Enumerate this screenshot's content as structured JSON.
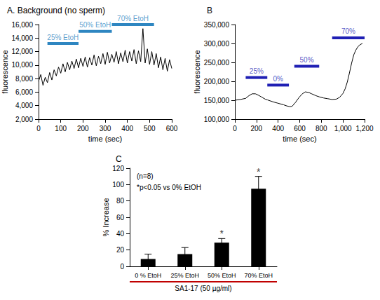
{
  "chart_data": [
    {
      "type": "line",
      "title": "A. Background (no sperm)",
      "x_label": "time (sec)",
      "y_label": "fluorescence",
      "x": [
        0,
        10,
        20,
        30,
        40,
        50,
        60,
        70,
        80,
        90,
        100,
        110,
        120,
        130,
        140,
        150,
        160,
        170,
        180,
        190,
        200,
        210,
        220,
        230,
        240,
        250,
        260,
        270,
        280,
        290,
        300,
        310,
        320,
        330,
        340,
        350,
        360,
        370,
        380,
        390,
        400,
        410,
        420,
        430,
        440,
        450,
        460,
        470,
        480,
        490,
        500,
        510,
        520,
        530,
        540,
        550,
        560,
        570,
        580,
        590,
        600
      ],
      "values": [
        7600,
        8600,
        7000,
        8200,
        7400,
        8900,
        7800,
        9300,
        8400,
        9700,
        8800,
        10200,
        9000,
        10400,
        9300,
        10600,
        9500,
        10900,
        9600,
        11000,
        9800,
        11200,
        9700,
        11100,
        10000,
        11500,
        9900,
        11300,
        10200,
        11700,
        10100,
        11900,
        10300,
        11600,
        10400,
        12000,
        10200,
        11800,
        10500,
        12200,
        10300,
        12000,
        10600,
        12300,
        10200,
        12100,
        10500,
        15400,
        10300,
        12400,
        10100,
        12000,
        10000,
        11700,
        9600,
        11200,
        9300,
        11000,
        9100,
        10800,
        9500
      ],
      "color": "#000000",
      "xlim": [
        0,
        600
      ],
      "xticks": [
        0,
        100,
        200,
        300,
        400,
        500,
        600
      ],
      "ylim": [
        2000,
        16000
      ],
      "yticks": [
        2000,
        4000,
        6000,
        8000,
        10000,
        12000,
        14000,
        16000
      ],
      "grid": false,
      "annotations": [
        {
          "text": "25% EtoH",
          "x0": 40,
          "x1": 180,
          "y": 13200,
          "color": "#2e86c1"
        },
        {
          "text": "50% EtoH",
          "x0": 180,
          "x1": 330,
          "y": 15000,
          "color": "#2e86c1"
        },
        {
          "text": "70% EtoH",
          "x0": 330,
          "x1": 520,
          "y": 16000,
          "color": "#2e86c1"
        }
      ]
    },
    {
      "type": "line",
      "title": "B",
      "x_label": "time (sec)",
      "y_label": "fluorescence",
      "x": [
        0,
        50,
        100,
        130,
        160,
        190,
        220,
        250,
        280,
        300,
        350,
        400,
        450,
        480,
        510,
        530,
        560,
        590,
        620,
        650,
        680,
        710,
        750,
        780,
        820,
        860,
        900,
        940,
        970,
        1000,
        1020,
        1040,
        1060,
        1080,
        1100,
        1120,
        1140,
        1160,
        1180
      ],
      "values": [
        150000,
        152000,
        155000,
        162000,
        167000,
        167000,
        163000,
        158000,
        153000,
        151000,
        146000,
        142000,
        138000,
        135000,
        133000,
        134000,
        144000,
        156000,
        166000,
        172000,
        171000,
        167000,
        162000,
        159000,
        156000,
        154000,
        152000,
        153000,
        158000,
        168000,
        180000,
        198000,
        222000,
        248000,
        270000,
        283000,
        292000,
        297000,
        300000
      ],
      "color": "#000000",
      "xlim": [
        0,
        1200
      ],
      "xticks": [
        0,
        200,
        400,
        600,
        800,
        1000,
        1200
      ],
      "ylim": [
        100000,
        350000
      ],
      "yticks": [
        100000,
        150000,
        200000,
        250000,
        300000,
        350000
      ],
      "grid": false,
      "annotations": [
        {
          "text": "25%",
          "x0": 100,
          "x1": 300,
          "y": 210000,
          "color": "#1f1fb4"
        },
        {
          "text": "0%",
          "x0": 300,
          "x1": 500,
          "y": 190000,
          "color": "#1f1fb4"
        },
        {
          "text": "50%",
          "x0": 550,
          "x1": 780,
          "y": 240000,
          "color": "#1f1fb4"
        },
        {
          "text": "70%",
          "x0": 900,
          "x1": 1200,
          "y": 315000,
          "color": "#1f1fb4"
        }
      ]
    },
    {
      "type": "bar",
      "title": "C",
      "y_label": "% Increase",
      "categories": [
        "0 % EtoH",
        "25% EtoH",
        "50% EtoH",
        "70% EtoH"
      ],
      "values": [
        9,
        15,
        29,
        95
      ],
      "errors": [
        6,
        8,
        5,
        15
      ],
      "color": "#000000",
      "ylim": [
        0,
        120
      ],
      "yticks": [
        0,
        20,
        40,
        60,
        80,
        100,
        120
      ],
      "grid": false,
      "notes": [
        "(n=8)",
        "*p<0.05 vs 0% EtOH"
      ],
      "annotations": [
        {
          "text": "*",
          "x": "50% EtoH",
          "y": 34
        },
        {
          "text": "*",
          "x": "70% EtoH",
          "y": 110
        }
      ],
      "group_label": {
        "text": "SA1-17 (50 µg/ml)",
        "color": "#c00000"
      }
    }
  ]
}
